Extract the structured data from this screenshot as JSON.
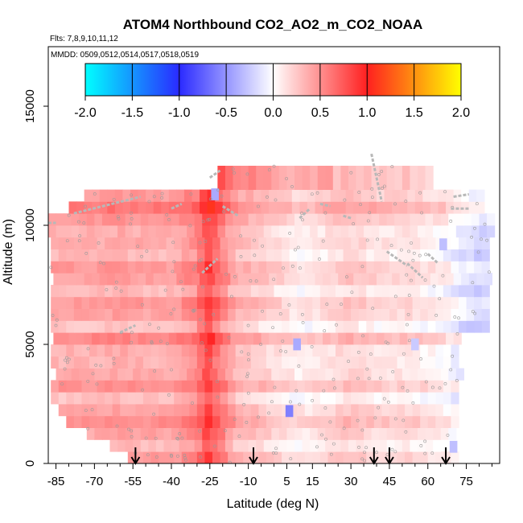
{
  "chart_data": {
    "type": "heatmap",
    "title": "ATOM4 Northbound CO2_AO2_m_CO2_NOAA",
    "flights_label": "Flts: 7,8,9,10,11,12",
    "mmdd_label": "MMDD: 0509,0512,0514,0517,0518,0519",
    "xlabel": "Latitude (deg N)",
    "ylabel": "Altitude (m)",
    "xlim": [
      -88,
      88
    ],
    "ylim": [
      0,
      17500
    ],
    "x_ticks": [
      -85,
      -70,
      -55,
      -40,
      -25,
      -10,
      5,
      15,
      30,
      45,
      60,
      75
    ],
    "x_minor_ticks": [
      -80,
      -75,
      -65,
      -60,
      -50,
      -45,
      -35,
      -30,
      -20,
      -15,
      -5,
      0,
      10,
      20,
      25,
      35,
      40,
      50,
      55,
      65,
      70,
      80,
      85
    ],
    "y_ticks": [
      0,
      5000,
      10000,
      15000
    ],
    "colorbar": {
      "range": [
        -2.0,
        2.0
      ],
      "ticks": [
        "-2.0",
        "-1.5",
        "-1.0",
        "-0.5",
        "0.0",
        "0.5",
        "1.0",
        "1.5",
        "2.0"
      ],
      "stops": [
        {
          "v": -2.0,
          "color": "#00ffff"
        },
        {
          "v": -1.0,
          "color": "#2a2aff"
        },
        {
          "v": 0.0,
          "color": "#ffffff"
        },
        {
          "v": 1.0,
          "color": "#ff2020"
        },
        {
          "v": 2.0,
          "color": "#ffff00"
        }
      ]
    },
    "profile_markers_lat": [
      -54,
      -8,
      39,
      45,
      67
    ],
    "alt_bands_m": [
      [
        0,
        500
      ],
      [
        500,
        1000
      ],
      [
        1000,
        1500
      ],
      [
        1500,
        2000
      ],
      [
        2000,
        2500
      ],
      [
        2500,
        3000
      ],
      [
        3000,
        3500
      ],
      [
        3500,
        4000
      ],
      [
        4000,
        4500
      ],
      [
        4500,
        5000
      ],
      [
        5000,
        5500
      ],
      [
        5500,
        6000
      ],
      [
        6000,
        6500
      ],
      [
        6500,
        7000
      ],
      [
        7000,
        7500
      ],
      [
        7500,
        8000
      ],
      [
        8000,
        8500
      ],
      [
        8500,
        9000
      ],
      [
        9000,
        9500
      ],
      [
        9500,
        10000
      ],
      [
        10000,
        10500
      ],
      [
        10500,
        11000
      ],
      [
        11000,
        11500
      ],
      [
        11500,
        12500
      ]
    ],
    "band_lat_extents": [
      [
        -57,
        70
      ],
      [
        -64,
        64
      ],
      [
        -73,
        70
      ],
      [
        -81,
        72
      ],
      [
        -84,
        72
      ],
      [
        -87,
        72
      ],
      [
        -87,
        72
      ],
      [
        -85,
        72
      ],
      [
        -87,
        72
      ],
      [
        -87,
        72
      ],
      [
        -86,
        72
      ],
      [
        -87,
        82
      ],
      [
        -87,
        82
      ],
      [
        -87,
        82
      ],
      [
        -87,
        82
      ],
      [
        -86,
        84
      ],
      [
        -87,
        84
      ],
      [
        -87,
        84
      ],
      [
        -87,
        84
      ],
      [
        -88,
        84
      ],
      [
        -88,
        84
      ],
      [
        -80,
        80
      ],
      [
        -74,
        80
      ],
      [
        -22,
        60
      ]
    ],
    "lat_profile_lat": [
      -88,
      -80,
      -70,
      -60,
      -50,
      -40,
      -30,
      -27,
      -25,
      -22,
      -15,
      -5,
      0,
      10,
      20,
      30,
      40,
      45,
      50,
      55,
      60,
      65,
      70,
      75,
      80,
      88
    ],
    "lat_profile_val": [
      0.35,
      0.35,
      0.35,
      0.38,
      0.35,
      0.35,
      0.5,
      0.75,
      0.82,
      0.6,
      0.3,
      0.22,
      0.15,
      0.05,
      0.12,
      0.2,
      0.12,
      0.1,
      0.12,
      0.1,
      0.05,
      0.03,
      -0.05,
      -0.15,
      -0.2,
      -0.2
    ],
    "band_offsets": [
      0.08,
      -0.05,
      0.05,
      0.15,
      0.05,
      -0.08,
      0.12,
      0.02,
      -0.02,
      0.0,
      0.18,
      -0.1,
      0.05,
      0.1,
      -0.05,
      0.08,
      0.1,
      -0.05,
      0.02,
      0.0,
      0.1,
      0.25,
      0.1,
      0.3
    ],
    "blue_patches": [
      {
        "lat": 9,
        "alt_m": 5000,
        "value": -0.4
      },
      {
        "lat": 6,
        "alt_m": 2200,
        "value": -0.6
      },
      {
        "lat": 70,
        "alt_m": 700,
        "value": -0.3
      },
      {
        "lat": 66,
        "alt_m": 9200,
        "value": -0.3
      },
      {
        "lat": 55,
        "alt_m": 5000,
        "value": -0.25
      },
      {
        "lat": -23,
        "alt_m": 11300,
        "value": -0.4
      }
    ],
    "flight_tracks": [
      {
        "lat": [
          -88,
          -85
        ],
        "alt_m": [
          10100,
          10100
        ]
      },
      {
        "lat": [
          -78,
          -52
        ],
        "alt_m": [
          10500,
          11200
        ]
      },
      {
        "lat": [
          -40,
          -36
        ],
        "alt_m": [
          10700,
          10900
        ]
      },
      {
        "lat": [
          -25,
          -21
        ],
        "alt_m": [
          12000,
          12300
        ]
      },
      {
        "lat": [
          -28,
          -22
        ],
        "alt_m": [
          8000,
          8600
        ]
      },
      {
        "lat": [
          -60,
          -54
        ],
        "alt_m": [
          5500,
          5800
        ]
      },
      {
        "lat": [
          -20,
          -14
        ],
        "alt_m": [
          10800,
          10400
        ]
      },
      {
        "lat": [
          10,
          14
        ],
        "alt_m": [
          10300,
          10700
        ]
      },
      {
        "lat": [
          18,
          22
        ],
        "alt_m": [
          10900,
          10800
        ]
      },
      {
        "lat": [
          27,
          30
        ],
        "alt_m": [
          10400,
          10300
        ]
      },
      {
        "lat": [
          38,
          42
        ],
        "alt_m": [
          13000,
          11000
        ]
      },
      {
        "lat": [
          44,
          52
        ],
        "alt_m": [
          8900,
          8300
        ]
      },
      {
        "lat": [
          52,
          58
        ],
        "alt_m": [
          8400,
          7800
        ]
      },
      {
        "lat": [
          60,
          64
        ],
        "alt_m": [
          8800,
          8400
        ]
      },
      {
        "lat": [
          69,
          76
        ],
        "alt_m": [
          10700,
          10700
        ]
      },
      {
        "lat": [
          70,
          76
        ],
        "alt_m": [
          11200,
          11300
        ]
      }
    ]
  }
}
